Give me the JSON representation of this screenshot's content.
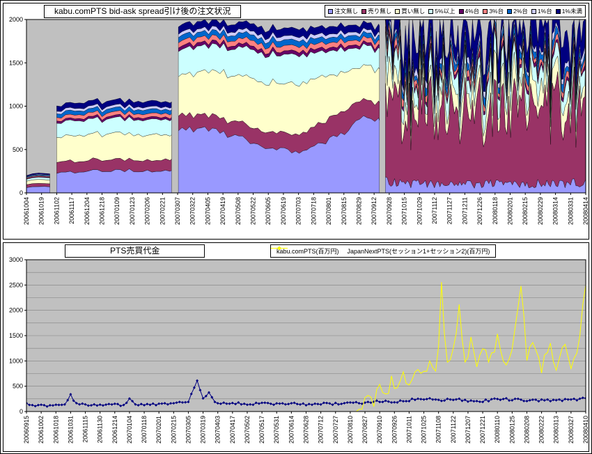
{
  "chart_data": [
    {
      "type": "area",
      "stacked": true,
      "title": "kabu.comPTS bid-ask spread引け後の注文状況",
      "ylim": [
        0,
        2000
      ],
      "yticks": [
        0,
        500,
        1000,
        1500,
        2000
      ],
      "legend_position": "top-right",
      "plot_bg": "#C0C0C0",
      "x_labels": [
        "20061004",
        "20061019",
        "20061102",
        "20061117",
        "20061204",
        "20061218",
        "20070109",
        "20070123",
        "20070206",
        "20070221",
        "20070307",
        "20070322",
        "20070405",
        "20070419",
        "20070508",
        "20070522",
        "20070605",
        "20070619",
        "20070703",
        "20070718",
        "20070801",
        "20070815",
        "20070829",
        "20070912",
        "20070928",
        "20071015",
        "20071029",
        "20071112",
        "20071127",
        "20071211",
        "20071226",
        "20080118",
        "20080201",
        "20080215",
        "20080229",
        "20080314",
        "20080331",
        "20080414"
      ],
      "series": [
        {
          "label": "注文無し",
          "color": "#9999FF"
        },
        {
          "label": "売り無し",
          "color": "#993366"
        },
        {
          "label": "買い無し",
          "color": "#FFFFCC"
        },
        {
          "label": "5%以上",
          "color": "#CCFFFF"
        },
        {
          "label": "4%台",
          "color": "#660066"
        },
        {
          "label": "3%台",
          "color": "#FF8080"
        },
        {
          "label": "2%台",
          "color": "#0066CC"
        },
        {
          "label": "1%台",
          "color": "#CCCCFF"
        },
        {
          "label": "1%未満",
          "color": "#000080"
        }
      ],
      "segments": [
        {
          "noise": 0.06,
          "step": 0.4,
          "points": [
            {
              "x": 0.0,
              "v": [
                62,
                32,
                40,
                22,
                7,
                9,
                9,
                6,
                13
              ]
            },
            {
              "x": 0.8,
              "v": [
                72,
                36,
                46,
                26,
                8,
                10,
                10,
                7,
                15
              ]
            },
            {
              "x": 1.55,
              "v": [
                68,
                34,
                44,
                24,
                8,
                10,
                10,
                7,
                14
              ]
            }
          ]
        },
        {
          "noise": 0.07,
          "step": 0.3,
          "points": [
            {
              "x": 2.0,
              "v": [
                235,
                120,
                285,
                165,
                25,
                40,
                45,
                30,
                60
              ]
            },
            {
              "x": 3.0,
              "v": [
                240,
                125,
                290,
                170,
                25,
                42,
                45,
                30,
                62
              ]
            },
            {
              "x": 5.0,
              "v": [
                255,
                130,
                300,
                175,
                26,
                44,
                46,
                31,
                64
              ]
            },
            {
              "x": 7.0,
              "v": [
                260,
                128,
                298,
                172,
                26,
                43,
                46,
                31,
                64
              ]
            },
            {
              "x": 9.6,
              "v": [
                255,
                126,
                292,
                170,
                25,
                42,
                46,
                30,
                64
              ]
            }
          ]
        },
        {
          "noise": 0.06,
          "step": 0.25,
          "points": [
            {
              "x": 10.05,
              "v": [
                760,
                170,
                460,
                290,
                40,
                60,
                60,
                40,
                85
              ]
            },
            {
              "x": 12.0,
              "v": [
                720,
                160,
                520,
                300,
                40,
                60,
                60,
                40,
                85
              ]
            },
            {
              "x": 14.0,
              "v": [
                640,
                170,
                540,
                310,
                40,
                60,
                62,
                42,
                88
              ]
            },
            {
              "x": 16.0,
              "v": [
                520,
                185,
                570,
                330,
                40,
                62,
                64,
                44,
                90
              ]
            },
            {
              "x": 18.0,
              "v": [
                470,
                200,
                590,
                335,
                42,
                62,
                66,
                44,
                92
              ]
            },
            {
              "x": 19.5,
              "v": [
                560,
                230,
                540,
                300,
                40,
                60,
                62,
                42,
                88
              ]
            },
            {
              "x": 21.0,
              "v": [
                700,
                260,
                440,
                260,
                38,
                58,
                58,
                40,
                85
              ]
            },
            {
              "x": 22.0,
              "v": [
                870,
                210,
                370,
                230,
                35,
                55,
                55,
                38,
                82
              ]
            },
            {
              "x": 23.35,
              "v": [
                830,
                195,
                400,
                235,
                35,
                55,
                55,
                38,
                82
              ]
            }
          ]
        },
        {
          "noise": 0.5,
          "step": 0.12,
          "points": [
            {
              "x": 23.75,
              "v": [
                140,
                880,
                260,
                200,
                42,
                68,
                90,
                60,
                270
              ]
            },
            {
              "x": 25.0,
              "v": [
                120,
                830,
                210,
                180,
                40,
                70,
                90,
                60,
                300
              ]
            },
            {
              "x": 26.5,
              "v": [
                100,
                930,
                160,
                150,
                40,
                62,
                82,
                58,
                340
              ]
            },
            {
              "x": 28.0,
              "v": [
                115,
                800,
                240,
                195,
                40,
                62,
                80,
                58,
                300
              ]
            },
            {
              "x": 29.5,
              "v": [
                100,
                890,
                200,
                155,
                40,
                60,
                80,
                58,
                340
              ]
            },
            {
              "x": 31.0,
              "v": [
                115,
                850,
                240,
                180,
                40,
                60,
                80,
                58,
                300
              ]
            },
            {
              "x": 32.5,
              "v": [
                100,
                900,
                200,
                175,
                40,
                60,
                80,
                58,
                320
              ]
            },
            {
              "x": 34.0,
              "v": [
                115,
                870,
                225,
                180,
                40,
                60,
                80,
                58,
                305
              ]
            },
            {
              "x": 35.5,
              "v": [
                100,
                895,
                210,
                175,
                40,
                60,
                80,
                58,
                320
              ]
            },
            {
              "x": 37.0,
              "v": [
                118,
                875,
                225,
                180,
                40,
                60,
                80,
                58,
                300
              ]
            }
          ]
        }
      ]
    },
    {
      "type": "line",
      "title": "PTS売買代金",
      "ylim": [
        0,
        3000
      ],
      "yticks": [
        0,
        500,
        1000,
        1500,
        2000,
        2500,
        3000
      ],
      "grid_step": 250,
      "legend_position": "top",
      "plot_bg": "#C0C0C0",
      "x_labels": [
        "20060915",
        "20061002",
        "20061018",
        "20061031",
        "20061115",
        "20061130",
        "20061214",
        "20070104",
        "20070118",
        "20070201",
        "20070215",
        "20070305",
        "20070319",
        "20070403",
        "20070417",
        "20070502",
        "20070517",
        "20070531",
        "20070614",
        "20070628",
        "20070712",
        "20070727",
        "20070810",
        "20070827",
        "20070910",
        "20070926",
        "20071011",
        "20071025",
        "20071108",
        "20071122",
        "20071207",
        "20071221",
        "20080110",
        "20080125",
        "20080208",
        "20080222",
        "20080313",
        "20080327",
        "20080410"
      ],
      "series": [
        {
          "label": "kabu.comPTS(百万円)",
          "color": "#000080",
          "marker": "diamond",
          "noise": 22,
          "step": 0.2,
          "points": [
            [
              0,
              150
            ],
            [
              0.5,
              120
            ],
            [
              1,
              140
            ],
            [
              1.5,
              110
            ],
            [
              2,
              150
            ],
            [
              2.6,
              130
            ],
            [
              3,
              360
            ],
            [
              3.3,
              150
            ],
            [
              4,
              140
            ],
            [
              5,
              130
            ],
            [
              6,
              140
            ],
            [
              6.6,
              120
            ],
            [
              7,
              240
            ],
            [
              7.4,
              140
            ],
            [
              8,
              130
            ],
            [
              9,
              150
            ],
            [
              10,
              160
            ],
            [
              11,
              180
            ],
            [
              11.6,
              620
            ],
            [
              12,
              240
            ],
            [
              12.4,
              370
            ],
            [
              12.8,
              170
            ],
            [
              13.5,
              160
            ],
            [
              14,
              170
            ],
            [
              15,
              150
            ],
            [
              16,
              160
            ],
            [
              17,
              150
            ],
            [
              18,
              160
            ],
            [
              19,
              145
            ],
            [
              20,
              150
            ],
            [
              21,
              155
            ],
            [
              22,
              165
            ],
            [
              23,
              175
            ],
            [
              24,
              205
            ],
            [
              25,
              185
            ],
            [
              26,
              225
            ],
            [
              27,
              255
            ],
            [
              28,
              225
            ],
            [
              29,
              245
            ],
            [
              30,
              215
            ],
            [
              31,
              205
            ],
            [
              32,
              255
            ],
            [
              33,
              235
            ],
            [
              34,
              225
            ],
            [
              35,
              215
            ],
            [
              36,
              235
            ],
            [
              37,
              225
            ],
            [
              38,
              255
            ]
          ]
        },
        {
          "label": "JapanNextPTS(セッション1+セッション2)(百万円)",
          "color": "#FFFF00",
          "marker": "none",
          "noise": 120,
          "step": 0.2,
          "points": [
            [
              0,
              0
            ],
            [
              22.4,
              0
            ],
            [
              22.8,
              60
            ],
            [
              23.2,
              380
            ],
            [
              23.6,
              180
            ],
            [
              24,
              520
            ],
            [
              24.4,
              300
            ],
            [
              24.8,
              640
            ],
            [
              25.2,
              420
            ],
            [
              25.6,
              700
            ],
            [
              26,
              480
            ],
            [
              26.5,
              880
            ],
            [
              27,
              700
            ],
            [
              27.5,
              1000
            ],
            [
              27.9,
              780
            ],
            [
              28.2,
              2600
            ],
            [
              28.5,
              850
            ],
            [
              29,
              1250
            ],
            [
              29.4,
              2050
            ],
            [
              29.8,
              950
            ],
            [
              30.2,
              1400
            ],
            [
              30.6,
              900
            ],
            [
              31,
              1250
            ],
            [
              31.5,
              950
            ],
            [
              32,
              1450
            ],
            [
              32.5,
              850
            ],
            [
              33,
              1200
            ],
            [
              33.6,
              2550
            ],
            [
              34,
              1050
            ],
            [
              34.5,
              1350
            ],
            [
              35,
              750
            ],
            [
              35.5,
              1400
            ],
            [
              36,
              850
            ],
            [
              36.5,
              1300
            ],
            [
              37,
              950
            ],
            [
              37.5,
              1350
            ],
            [
              38,
              2600
            ]
          ]
        }
      ]
    }
  ]
}
